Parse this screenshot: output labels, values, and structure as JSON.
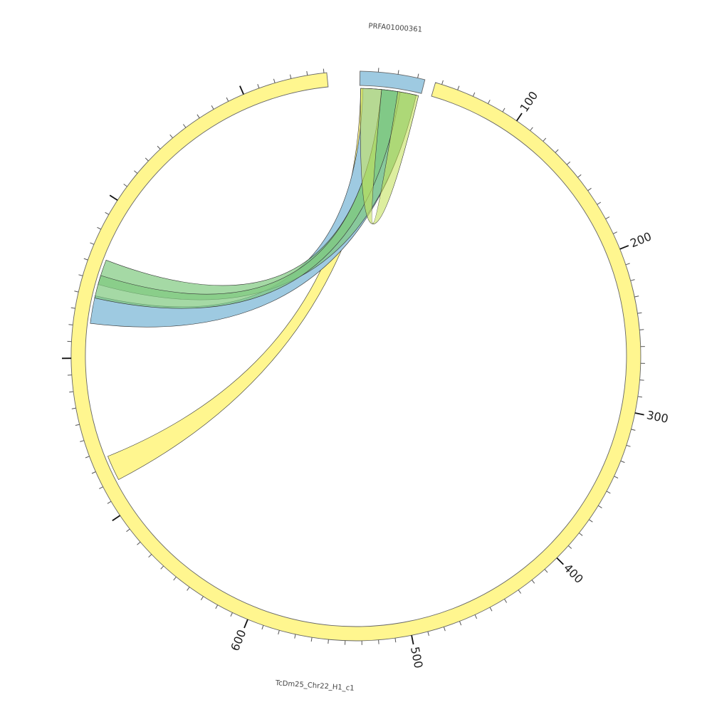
{
  "diagram": {
    "type": "chord",
    "chromosomes": [
      {
        "id": "chr22",
        "label": "TcDm25_Chr22_H1_c1",
        "color": "#fff68f"
      },
      {
        "id": "prfa",
        "label": "PRFA01000361",
        "color": "#9ecae1"
      }
    ],
    "tick_labels": [
      "100",
      "200",
      "300",
      "400",
      "500",
      "600"
    ],
    "ribbons": [
      {
        "color": "#fff68f",
        "opacity": 1.0
      },
      {
        "color": "#9ecae1",
        "opacity": 1.0
      },
      {
        "color": "#7fc97f",
        "opacity": 0.7
      },
      {
        "color": "#7fc97f",
        "opacity": 0.7
      },
      {
        "color": "#c7e35f",
        "opacity": 0.6
      }
    ]
  }
}
